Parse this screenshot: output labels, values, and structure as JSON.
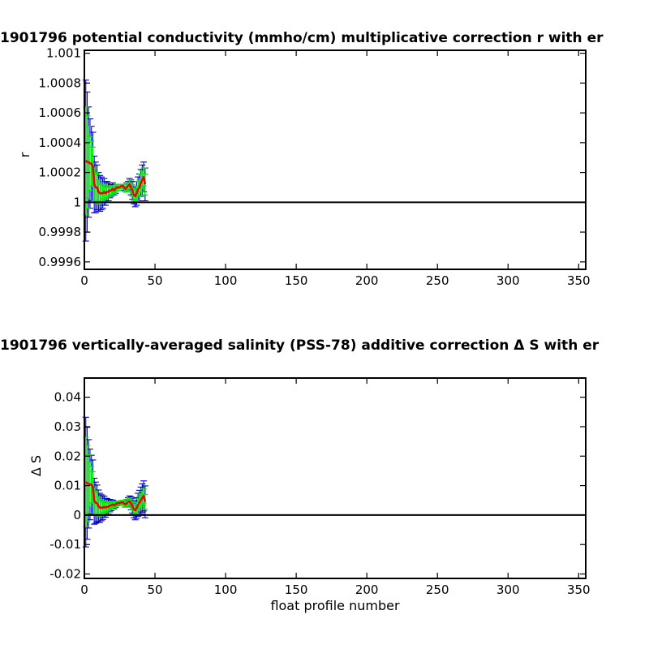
{
  "colors": {
    "axis": "#000000",
    "outer_error": "#0000cc",
    "inner_error": "#00ee00",
    "estimate": "#ee0000",
    "baseline": "#000000"
  },
  "chart_data": [
    {
      "type": "line",
      "title": "1901796 potential conductivity (mmho/cm) multiplicative correction r with er",
      "xlabel": "",
      "ylabel": "r",
      "xlim": [
        0,
        355
      ],
      "ylim": [
        0.99955,
        1.00102
      ],
      "xticks": [
        0,
        50,
        100,
        150,
        200,
        250,
        300,
        350
      ],
      "xtick_labels": [
        "0",
        "50",
        "100",
        "150",
        "200",
        "250",
        "300",
        "350"
      ],
      "yticks": [
        0.9996,
        0.9998,
        1,
        1.0002,
        1.0004,
        1.0006,
        1.0008,
        1.001
      ],
      "ytick_labels": [
        "0.9996",
        "0.9998",
        "1",
        "1.0002",
        "1.0004",
        "1.0006",
        "1.0008",
        "1.001"
      ],
      "baseline": 1,
      "series": [
        {
          "x": [
            1,
            2,
            3,
            4,
            5,
            6,
            7,
            8,
            9,
            10,
            11,
            12,
            13,
            14,
            15,
            16,
            17,
            18,
            19,
            20,
            21,
            22,
            23,
            24,
            25,
            26,
            27,
            28,
            29,
            30,
            31,
            32,
            33,
            34,
            35,
            36,
            37,
            38,
            39,
            40,
            41,
            42,
            43
          ],
          "y": [
            1.00028,
            1.00027,
            1.00027,
            1.00026,
            1.00026,
            1.00024,
            1.00012,
            1.0001,
            1.0001,
            1.00007,
            1.00006,
            1.00006,
            1.00006,
            1.00007,
            1.00006,
            1.00007,
            1.00007,
            1.00008,
            1.00008,
            1.00009,
            1.00008,
            1.00009,
            1.0001,
            1.0001,
            1.0001,
            1.00011,
            1.00011,
            1.0001,
            1.00009,
            1.0001,
            1.00011,
            1.00012,
            1.0001,
            1.00008,
            1.00005,
            1.00004,
            1.00006,
            1.00009,
            1.0001,
            1.00013,
            1.00015,
            1.00017,
            1.00012
          ],
          "inner_error": [
            0.00036,
            0.00031,
            0.00024,
            0.00018,
            0.00015,
            0.00013,
            0.00011,
            0.0001,
            9e-05,
            8e-05,
            7e-05,
            6e-05,
            5e-05,
            5e-05,
            4e-05,
            4e-05,
            3e-05,
            3e-05,
            3e-05,
            2e-05,
            2e-05,
            2e-05,
            2e-05,
            2e-05,
            1e-05,
            1e-05,
            1e-05,
            1e-05,
            2e-05,
            2e-05,
            2e-05,
            3e-05,
            3e-05,
            4e-05,
            4e-05,
            4e-05,
            5e-05,
            5e-05,
            5e-05,
            6e-05,
            6e-05,
            6e-05,
            7e-05
          ],
          "outer_error": [
            0.00054,
            0.00047,
            0.00037,
            0.0003,
            0.00025,
            0.00023,
            0.00019,
            0.00017,
            0.00015,
            0.00013,
            0.00012,
            0.00011,
            0.0001,
            9e-05,
            8e-05,
            7e-05,
            6e-05,
            5e-05,
            4e-05,
            4e-05,
            3e-05,
            3e-05,
            2e-05,
            2e-05,
            1e-05,
            1e-05,
            1e-05,
            2e-05,
            2e-05,
            3e-05,
            3e-05,
            4e-05,
            5e-05,
            6e-05,
            6e-05,
            7e-05,
            8e-05,
            8e-05,
            9e-05,
            9e-05,
            0.0001,
            0.0001,
            0.00011
          ]
        }
      ]
    },
    {
      "type": "line",
      "title": "1901796 vertically-averaged salinity (PSS-78) additive correction Δ S with er",
      "xlabel": "float profile number",
      "ylabel": "Δ S",
      "xlim": [
        0,
        355
      ],
      "ylim": [
        -0.0215,
        0.0465
      ],
      "xticks": [
        0,
        50,
        100,
        150,
        200,
        250,
        300,
        350
      ],
      "xtick_labels": [
        "0",
        "50",
        "100",
        "150",
        "200",
        "250",
        "300",
        "350"
      ],
      "yticks": [
        -0.02,
        -0.01,
        0,
        0.01,
        0.02,
        0.03,
        0.04
      ],
      "ytick_labels": [
        "-0.02",
        "-0.01",
        "0",
        "0.01",
        "0.02",
        "0.03",
        "0.04"
      ],
      "baseline": 0,
      "series": [
        {
          "x": [
            1,
            2,
            3,
            4,
            5,
            6,
            7,
            8,
            9,
            10,
            11,
            12,
            13,
            14,
            15,
            16,
            17,
            18,
            19,
            20,
            21,
            22,
            23,
            24,
            25,
            26,
            27,
            28,
            29,
            30,
            31,
            32,
            33,
            34,
            35,
            36,
            37,
            38,
            39,
            40,
            41,
            42,
            43
          ],
          "y": [
            0.0112,
            0.0108,
            0.0106,
            0.0104,
            0.0103,
            0.0095,
            0.0047,
            0.0042,
            0.004,
            0.003,
            0.0025,
            0.0025,
            0.0025,
            0.0028,
            0.0025,
            0.0028,
            0.0028,
            0.0032,
            0.0033,
            0.0036,
            0.0033,
            0.0036,
            0.004,
            0.004,
            0.0041,
            0.0043,
            0.0044,
            0.004,
            0.0036,
            0.004,
            0.0044,
            0.0047,
            0.004,
            0.0032,
            0.002,
            0.0016,
            0.0024,
            0.0035,
            0.0042,
            0.005,
            0.0058,
            0.0065,
            0.0045
          ],
          "inner_error": [
            0.0152,
            0.0128,
            0.0098,
            0.0074,
            0.0062,
            0.0052,
            0.0045,
            0.004,
            0.0036,
            0.0032,
            0.0028,
            0.0024,
            0.0021,
            0.0019,
            0.0017,
            0.0015,
            0.0013,
            0.0012,
            0.0011,
            0.001,
            0.0009,
            0.0008,
            0.0007,
            0.0006,
            0.0006,
            0.0006,
            0.0006,
            0.0007,
            0.0008,
            0.0009,
            0.001,
            0.0011,
            0.0013,
            0.0014,
            0.0016,
            0.0017,
            0.0019,
            0.002,
            0.0021,
            0.0022,
            0.0023,
            0.0024,
            0.0025
          ],
          "outer_error": [
            0.022,
            0.019,
            0.015,
            0.012,
            0.01,
            0.0092,
            0.0078,
            0.007,
            0.0062,
            0.0055,
            0.0049,
            0.0044,
            0.004,
            0.0036,
            0.0032,
            0.0028,
            0.0025,
            0.0021,
            0.0018,
            0.0015,
            0.0012,
            0.001,
            0.0008,
            0.0006,
            0.0005,
            0.0004,
            0.0005,
            0.0007,
            0.0009,
            0.0012,
            0.0015,
            0.0018,
            0.0022,
            0.0025,
            0.0029,
            0.0032,
            0.0035,
            0.0039,
            0.0042,
            0.0045,
            0.0048,
            0.0051,
            0.0054
          ]
        }
      ]
    }
  ]
}
